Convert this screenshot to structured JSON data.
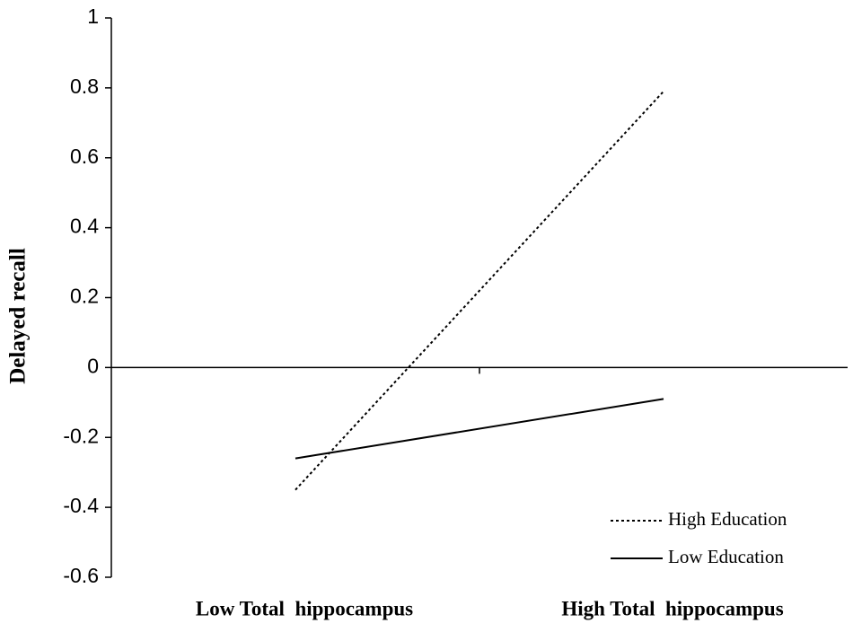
{
  "chart_data": {
    "type": "line",
    "y_label": "Delayed recall",
    "categories": [
      "Low Total  hippocampus",
      "High Total  hippocampus"
    ],
    "series": [
      {
        "name": "High Education",
        "color": "#000000",
        "line_style": "dotted",
        "values": [
          -0.35,
          0.79
        ]
      },
      {
        "name": "Low Education",
        "color": "#000000",
        "line_style": "solid",
        "values": [
          -0.26,
          -0.09
        ]
      }
    ],
    "ylim": [
      -0.6,
      1
    ],
    "yticks": [
      -0.6,
      -0.4,
      -0.2,
      0,
      0.2,
      0.4,
      0.6,
      0.8,
      1
    ],
    "legend": "lower right"
  }
}
